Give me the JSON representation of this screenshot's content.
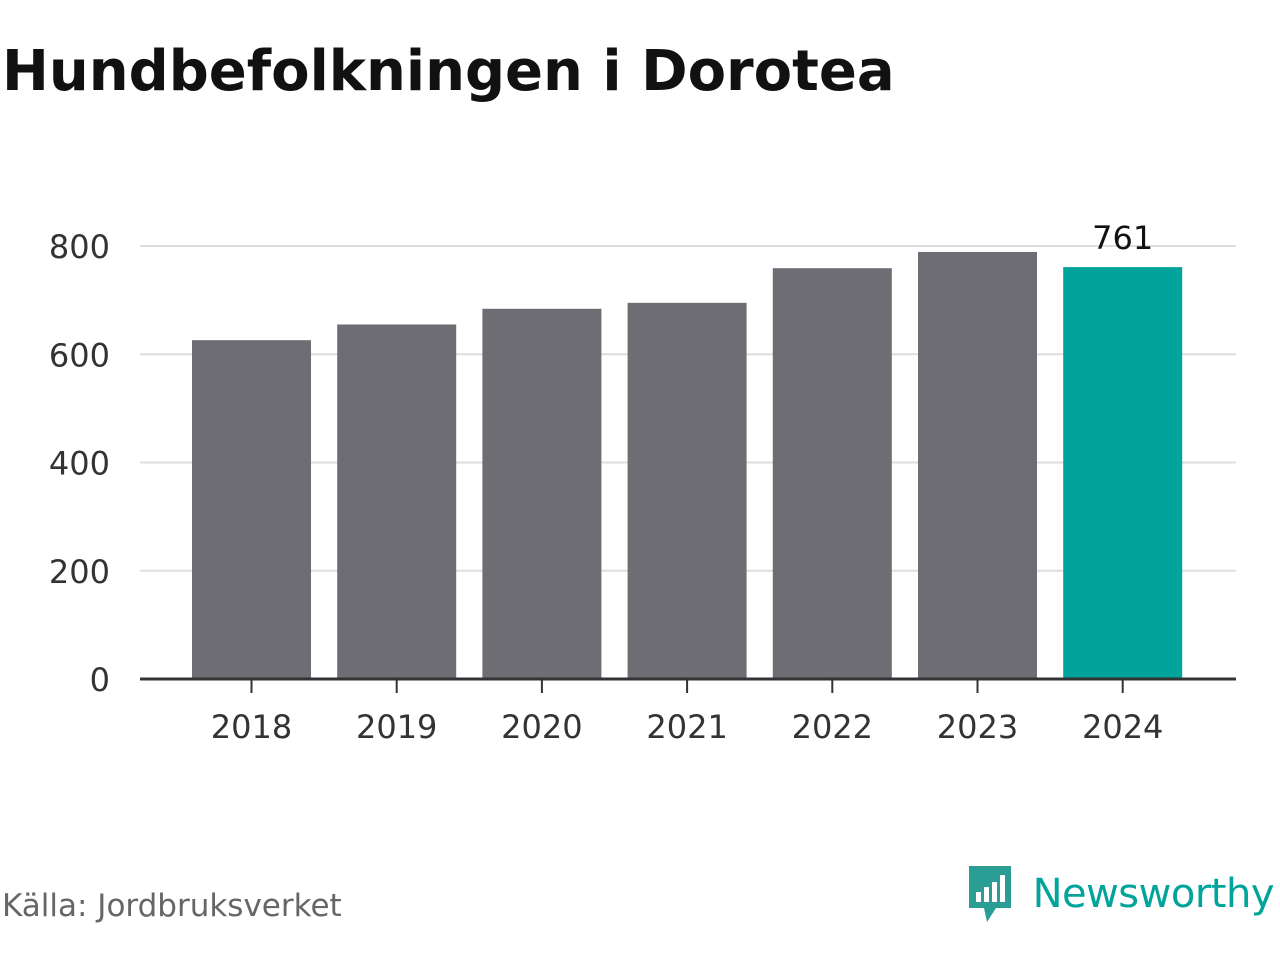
{
  "title": "Hundbefolkningen i Dorotea",
  "source": "Källa: Jordbruksverket",
  "brand": {
    "name": "Newsworthy",
    "icon": "newsworthy-logo-icon",
    "color": "#00a49a"
  },
  "colors": {
    "bar": "#6e6d73",
    "highlight": "#00a49a",
    "grid": "#dddddd",
    "axis": "#333333",
    "text": "#333333"
  },
  "chart_data": {
    "type": "bar",
    "categories": [
      "2018",
      "2019",
      "2020",
      "2021",
      "2022",
      "2023",
      "2024"
    ],
    "values": [
      626,
      655,
      684,
      695,
      759,
      789,
      761
    ],
    "highlight_index": 6,
    "data_labels": [
      {
        "index": 6,
        "text": "761"
      }
    ],
    "ylim": [
      0,
      800
    ],
    "yticks": [
      "0",
      "200",
      "400",
      "600",
      "800"
    ],
    "grid": true,
    "legend": "none"
  }
}
